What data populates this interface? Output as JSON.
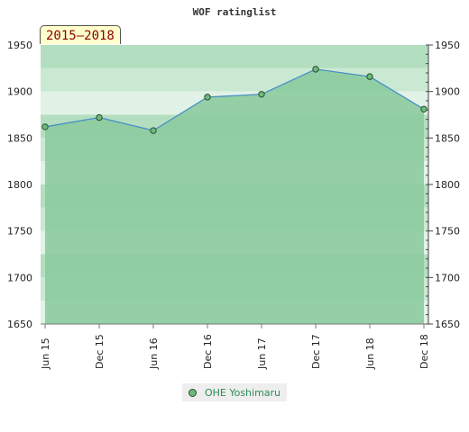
{
  "chart_data": {
    "type": "area",
    "title": "WOF ratinglist",
    "badge": "2015–2018",
    "x": [
      "Jun 15",
      "Dec 15",
      "Jun 16",
      "Dec 16",
      "Jun 17",
      "Dec 17",
      "Jun 18",
      "Dec 18"
    ],
    "series": [
      {
        "name": "OHE Yoshimaru",
        "values": [
          1862,
          1872,
          1858,
          1894,
          1897,
          1924,
          1916,
          1881
        ]
      }
    ],
    "ylim": [
      1650,
      1950
    ],
    "yticks": [
      1650,
      1700,
      1750,
      1800,
      1850,
      1900,
      1950
    ],
    "y_axis_both_sides": true,
    "grid": false,
    "legend_position": "bottom-center",
    "colors": {
      "area": "#8ccb9e",
      "line": "#4a90c8",
      "marker": "#6dbb7b"
    }
  }
}
